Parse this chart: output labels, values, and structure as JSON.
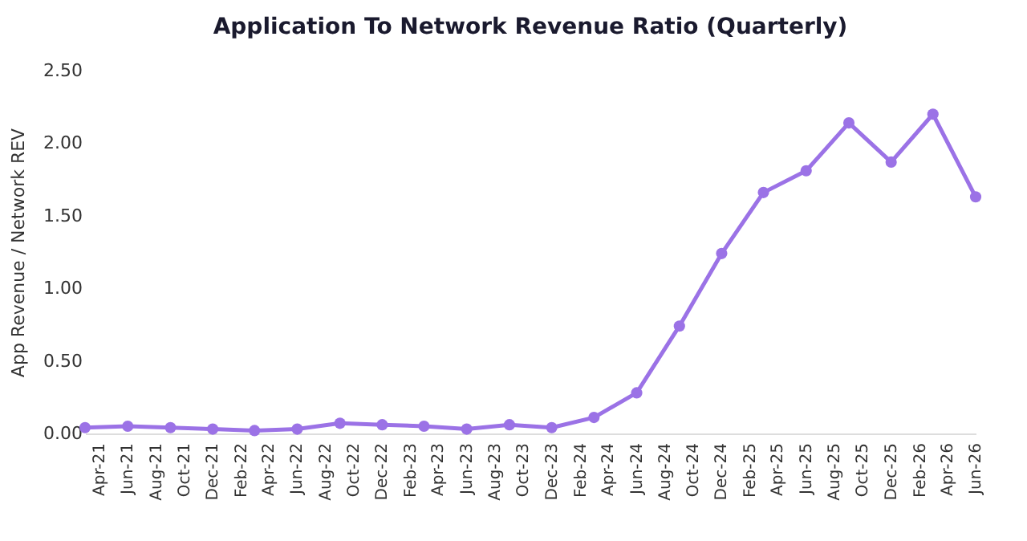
{
  "chart_data": {
    "type": "line",
    "title": "Application To Network Revenue Ratio (Quarterly)",
    "ylabel": "App Revenue / Network REV",
    "x": [
      "2021-03",
      "2021-06",
      "2021-09",
      "2021-12",
      "2022-03",
      "2022-06",
      "2022-09",
      "2022-12",
      "2023-03",
      "2023-06",
      "2023-09",
      "2023-12",
      "2024-03",
      "2024-06",
      "2024-09",
      "2024-12",
      "2025-03",
      "2025-06",
      "2025-09",
      "2025-12",
      "2026-03",
      "2026-06"
    ],
    "series": [
      {
        "color": "#9b72e6",
        "values": [
          0.04,
          0.05,
          0.04,
          0.03,
          0.02,
          0.03,
          0.07,
          0.06,
          0.05,
          0.03,
          0.06,
          0.04,
          0.11,
          0.28,
          0.74,
          1.24,
          1.66,
          1.81,
          2.14,
          1.87,
          2.2,
          1.63
        ]
      }
    ],
    "xlim": [
      "2021-03",
      "2026-06"
    ],
    "xticks": [
      {
        "value": "2021-04",
        "label": "Apr-21"
      },
      {
        "value": "2021-06",
        "label": "Jun-21"
      },
      {
        "value": "2021-08",
        "label": "Aug-21"
      },
      {
        "value": "2021-10",
        "label": "Oct-21"
      },
      {
        "value": "2021-12",
        "label": "Dec-21"
      },
      {
        "value": "2022-02",
        "label": "Feb-22"
      },
      {
        "value": "2022-04",
        "label": "Apr-22"
      },
      {
        "value": "2022-06",
        "label": "Jun-22"
      },
      {
        "value": "2022-08",
        "label": "Aug-22"
      },
      {
        "value": "2022-10",
        "label": "Oct-22"
      },
      {
        "value": "2022-12",
        "label": "Dec-22"
      },
      {
        "value": "2023-02",
        "label": "Feb-23"
      },
      {
        "value": "2023-04",
        "label": "Apr-23"
      },
      {
        "value": "2023-06",
        "label": "Jun-23"
      },
      {
        "value": "2023-08",
        "label": "Aug-23"
      },
      {
        "value": "2023-10",
        "label": "Oct-23"
      },
      {
        "value": "2023-12",
        "label": "Dec-23"
      },
      {
        "value": "2024-02",
        "label": "Feb-24"
      },
      {
        "value": "2024-04",
        "label": "Apr-24"
      },
      {
        "value": "2024-06",
        "label": "Jun-24"
      },
      {
        "value": "2024-08",
        "label": "Aug-24"
      },
      {
        "value": "2024-10",
        "label": "Oct-24"
      },
      {
        "value": "2024-12",
        "label": "Dec-24"
      },
      {
        "value": "2025-02",
        "label": "Feb-25"
      },
      {
        "value": "2025-04",
        "label": "Apr-25"
      },
      {
        "value": "2025-06",
        "label": "Jun-25"
      },
      {
        "value": "2025-08",
        "label": "Aug-25"
      },
      {
        "value": "2025-10",
        "label": "Oct-25"
      },
      {
        "value": "2025-12",
        "label": "Dec-25"
      },
      {
        "value": "2026-02",
        "label": "Feb-26"
      },
      {
        "value": "2026-04",
        "label": "Apr-26"
      },
      {
        "value": "2026-06",
        "label": "Jun-26"
      }
    ],
    "ylim": [
      0,
      2.5
    ],
    "yticks": [
      {
        "value": 0,
        "label": "0.00"
      },
      {
        "value": 0.5,
        "label": "0.50"
      },
      {
        "value": 1,
        "label": "1.00"
      },
      {
        "value": 1.5,
        "label": "1.50"
      },
      {
        "value": 2,
        "label": "2.00"
      },
      {
        "value": 2.5,
        "label": "2.50"
      }
    ],
    "grid": false,
    "legend": false,
    "marker": "circle",
    "line_style": "solid"
  }
}
